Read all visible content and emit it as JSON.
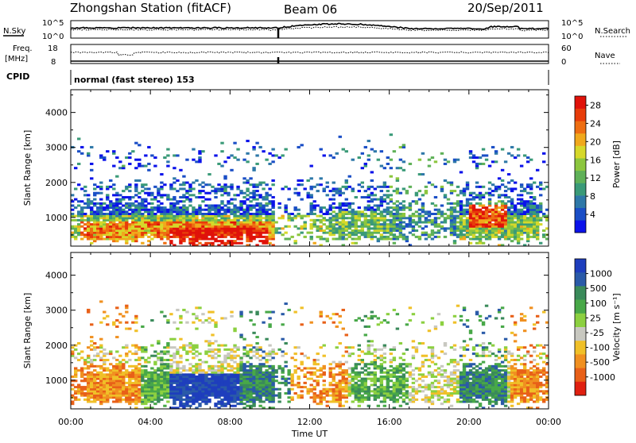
{
  "header": {
    "station_title": "Zhongshan Station (fitACF)",
    "beam": "Beam 06",
    "date": "20/Sep/2011"
  },
  "noise_panel": {
    "left_label": "N.Sky",
    "left_ticks": [
      "10^5",
      "10^0"
    ],
    "right_ticks": [
      "10^5",
      "10^0"
    ],
    "right_label": "N.Search"
  },
  "freq_panel": {
    "left_label_line1": "Freq.",
    "left_label_line2": "[MHz]",
    "left_ticks": [
      "18",
      "8"
    ],
    "right_ticks": [
      "60",
      "0"
    ],
    "right_label": "Nave"
  },
  "cpid": {
    "label": "CPID",
    "value": "normal (fast stereo) 153"
  },
  "chart_data": [
    {
      "type": "heatmap",
      "title": "Power",
      "ylabel": "Slant Range [km]",
      "xlabel": "Time UT",
      "x_ticks": [
        "00:00",
        "04:00",
        "08:00",
        "12:00",
        "16:00",
        "20:00",
        "00:00"
      ],
      "y_ticks": [
        1000,
        2000,
        3000,
        4000
      ],
      "ylim": [
        180,
        4650
      ],
      "xlim_hours": [
        0,
        24
      ],
      "colorbar_label": "Power [dB]",
      "colorbar_ticks": [
        4,
        8,
        12,
        16,
        20,
        24,
        28
      ],
      "colorbar_range": [
        0,
        30
      ],
      "colorbar_colors": [
        "#0b12ea",
        "#1a4ec6",
        "#2e78a8",
        "#3a9a78",
        "#5fb158",
        "#8cc63e",
        "#d6d82a",
        "#f0a81c",
        "#ee6e12",
        "#e73c0a",
        "#e0120a"
      ]
    },
    {
      "type": "heatmap",
      "title": "Velocity",
      "ylabel": "Slant Range [km]",
      "xlabel": "Time UT",
      "x_ticks": [
        "00:00",
        "04:00",
        "08:00",
        "12:00",
        "16:00",
        "20:00",
        "00:00"
      ],
      "y_ticks": [
        1000,
        2000,
        3000,
        4000
      ],
      "ylim": [
        180,
        4650
      ],
      "xlim_hours": [
        0,
        24
      ],
      "colorbar_label": "Velocity [m s⁻¹]",
      "colorbar_ticks": [
        "1000",
        "500",
        "100",
        "25",
        "-25",
        "-100",
        "-500",
        "-1000"
      ],
      "colorbar_colors": [
        "#1e3ebd",
        "#2a5aa8",
        "#3a8a5a",
        "#48a848",
        "#8cd040",
        "#c8c8c0",
        "#f0c028",
        "#f09020",
        "#e86018",
        "#e02010"
      ]
    }
  ]
}
